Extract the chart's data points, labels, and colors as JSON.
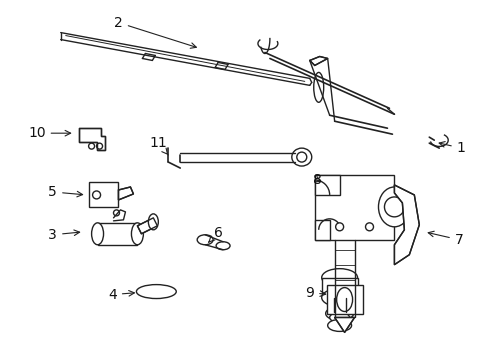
{
  "background_color": "#ffffff",
  "line_color": "#222222",
  "label_color": "#111111",
  "label_fontsize": 10,
  "figsize": [
    4.89,
    3.6
  ],
  "dpi": 100
}
